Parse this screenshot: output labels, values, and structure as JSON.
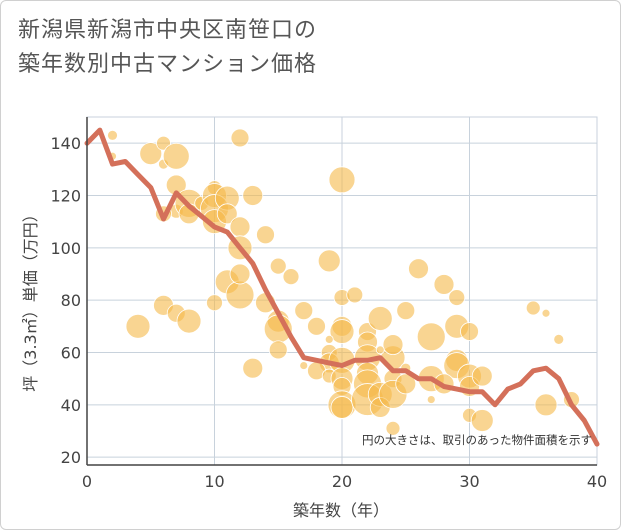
{
  "title_lines": [
    "新潟県新潟市中央区南笹口の",
    "築年数別中古マンション価格"
  ],
  "chart_data": {
    "type": "scatter",
    "title": "新潟県新潟市中央区南笹口の築年数別中古マンション価格",
    "xlabel": "築年数（年）",
    "ylabel": "坪（3.3㎡）単価（万円）",
    "note": "円の大きさは、取引のあった物件面積を示す",
    "xlim": [
      0,
      40
    ],
    "ylim": [
      17,
      150
    ],
    "x_ticks": [
      0,
      10,
      20,
      30,
      40
    ],
    "y_ticks": [
      20,
      40,
      60,
      80,
      100,
      120,
      140
    ],
    "grid": true,
    "bubble_color": "#f5b94a",
    "line_color": "#d4705a",
    "bubbles": [
      [
        2,
        143,
        5
      ],
      [
        2,
        135,
        4
      ],
      [
        5,
        136,
        11
      ],
      [
        6,
        140,
        7
      ],
      [
        6,
        132,
        5
      ],
      [
        7,
        135,
        13
      ],
      [
        7,
        124,
        10
      ],
      [
        7,
        114,
        7
      ],
      [
        6,
        113,
        8
      ],
      [
        8,
        117,
        14
      ],
      [
        8,
        113,
        10
      ],
      [
        9,
        117,
        7
      ],
      [
        10,
        123,
        7
      ],
      [
        10,
        120,
        12
      ],
      [
        10,
        115,
        14
      ],
      [
        10,
        110,
        12
      ],
      [
        11,
        119,
        12
      ],
      [
        11,
        113,
        10
      ],
      [
        12,
        142,
        9
      ],
      [
        13,
        120,
        10
      ],
      [
        12,
        108,
        10
      ],
      [
        12,
        100,
        12
      ],
      [
        11,
        87,
        12
      ],
      [
        12,
        82,
        14
      ],
      [
        12,
        90,
        10
      ],
      [
        14,
        105,
        9
      ],
      [
        15,
        93,
        8
      ],
      [
        16,
        89,
        8
      ],
      [
        14,
        79,
        10
      ],
      [
        15,
        72,
        11
      ],
      [
        15,
        69,
        14
      ],
      [
        15,
        61,
        9
      ],
      [
        13,
        54,
        10
      ],
      [
        17,
        76,
        9
      ],
      [
        6,
        78,
        10
      ],
      [
        7,
        75,
        9
      ],
      [
        8,
        72,
        12
      ],
      [
        10,
        79,
        8
      ],
      [
        4,
        70,
        12
      ],
      [
        19,
        95,
        11
      ],
      [
        20,
        126,
        13
      ],
      [
        20,
        81,
        8
      ],
      [
        21,
        82,
        8
      ],
      [
        18,
        70,
        9
      ],
      [
        20,
        70,
        10
      ],
      [
        20,
        68,
        12
      ],
      [
        19,
        60,
        8
      ],
      [
        19,
        56,
        10
      ],
      [
        20,
        57,
        13
      ],
      [
        18,
        53,
        9
      ],
      [
        19,
        51,
        7
      ],
      [
        20,
        50,
        11
      ],
      [
        20,
        47,
        9
      ],
      [
        20,
        40,
        14
      ],
      [
        20,
        39,
        11
      ],
      [
        22,
        68,
        9
      ],
      [
        22,
        64,
        10
      ],
      [
        23,
        73,
        12
      ],
      [
        22,
        58,
        13
      ],
      [
        22,
        52,
        11
      ],
      [
        22,
        48,
        14
      ],
      [
        22,
        42,
        16
      ],
      [
        23,
        44,
        12
      ],
      [
        23,
        39,
        10
      ],
      [
        24,
        58,
        12
      ],
      [
        24,
        50,
        9
      ],
      [
        24,
        63,
        10
      ],
      [
        25,
        76,
        9
      ],
      [
        24,
        44,
        14
      ],
      [
        25,
        48,
        10
      ],
      [
        26,
        92,
        10
      ],
      [
        28,
        86,
        10
      ],
      [
        29,
        81,
        8
      ],
      [
        27,
        66,
        14
      ],
      [
        29,
        70,
        12
      ],
      [
        30,
        68,
        9
      ],
      [
        29,
        57,
        11
      ],
      [
        29,
        55,
        13
      ],
      [
        30,
        51,
        12
      ],
      [
        30,
        47,
        10
      ],
      [
        31,
        51,
        10
      ],
      [
        30,
        36,
        7
      ],
      [
        31,
        34,
        11
      ],
      [
        27,
        50,
        13
      ],
      [
        28,
        48,
        10
      ],
      [
        35,
        77,
        7
      ],
      [
        36,
        75,
        4
      ],
      [
        37,
        65,
        5
      ],
      [
        36,
        40,
        11
      ],
      [
        38,
        42,
        8
      ],
      [
        24,
        31,
        7
      ],
      [
        17,
        55,
        4
      ],
      [
        19,
        65,
        4
      ],
      [
        25,
        54,
        5
      ],
      [
        23,
        61,
        4
      ],
      [
        27,
        42,
        4
      ]
    ],
    "trend": {
      "x": [
        0,
        1,
        2,
        3,
        4,
        5,
        6,
        7,
        8,
        9,
        10,
        11,
        12,
        13,
        14,
        15,
        16,
        17,
        18,
        19,
        20,
        21,
        22,
        23,
        24,
        25,
        26,
        27,
        28,
        29,
        30,
        31,
        32,
        33,
        34,
        35,
        36,
        37,
        38,
        39,
        40
      ],
      "y": [
        140,
        145,
        132,
        133,
        128,
        123,
        111,
        121,
        116,
        112,
        108,
        106,
        100,
        94,
        84,
        75,
        66,
        58,
        57,
        56,
        55,
        57,
        57,
        58,
        53,
        53,
        50,
        50,
        47,
        46,
        45,
        45,
        40,
        46,
        48,
        53,
        54,
        50,
        40,
        34,
        25
      ]
    }
  }
}
